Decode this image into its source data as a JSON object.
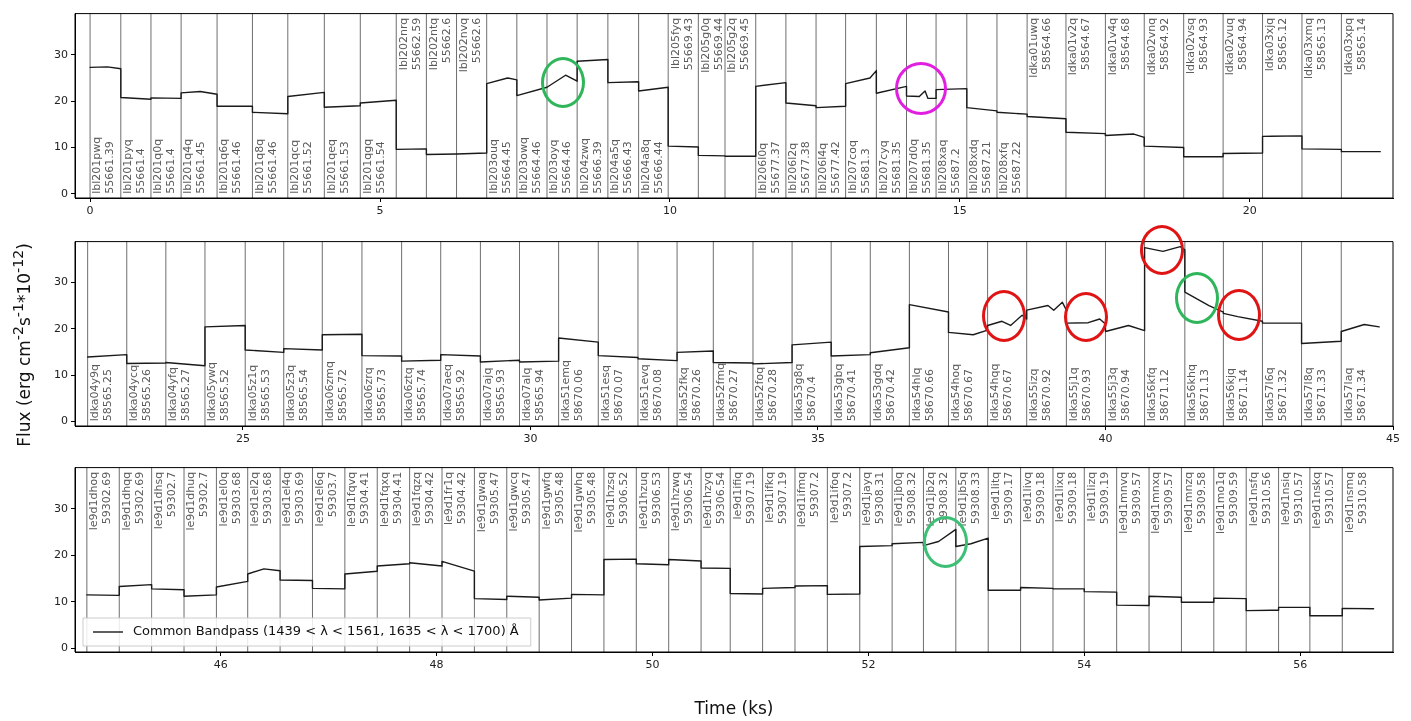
{
  "chart_data": [
    {
      "type": "line",
      "xlim": [
        -0.26,
        22.47
      ],
      "xticks": [
        0,
        5,
        10,
        15,
        20
      ],
      "ylim": [
        -0.9,
        38.9
      ],
      "yticks": [
        0,
        10,
        20,
        30
      ],
      "x": [
        0,
        0.3,
        0.53,
        0.53,
        1.05,
        1.05,
        1.57,
        1.57,
        1.9,
        2.19,
        2.19,
        2.8,
        2.8,
        3.41,
        3.41,
        4.04,
        4.04,
        4.66,
        4.66,
        5.28,
        5.28,
        5.8,
        5.8,
        6.32,
        6.32,
        6.84,
        6.84,
        7.2,
        7.36,
        7.36,
        7.88,
        7.88,
        8.2,
        8.4,
        8.4,
        8.93,
        8.93,
        9.46,
        9.46,
        9.97,
        9.97,
        10.49,
        10.49,
        10.95,
        10.95,
        11.48,
        11.48,
        12,
        12,
        12.52,
        12.52,
        13.03,
        13.03,
        13.45,
        13.56,
        13.56,
        14.08,
        14.08,
        14.3,
        14.4,
        14.45,
        14.59,
        14.59,
        15.12,
        15.12,
        15.64,
        15.64,
        16.16,
        16.16,
        16.83,
        16.83,
        17.51,
        17.51,
        18,
        18.18,
        18.18,
        18.86,
        18.86,
        19.54,
        19.54,
        20.22,
        20.22,
        20.9,
        20.9,
        21.58,
        21.58,
        22.25
      ],
      "series": [
        {
          "color": "#1a1a1a",
          "values": [
            27.3,
            27.4,
            27.0,
            20.8,
            20.4,
            20.7,
            20.6,
            21.8,
            22.1,
            21.5,
            18.9,
            18.9,
            17.6,
            17.3,
            21.0,
            21.9,
            18.7,
            19.0,
            19.6,
            20.2,
            9.6,
            9.7,
            8.5,
            8.6,
            8.6,
            8.8,
            23.8,
            25.0,
            24.6,
            21.2,
            23.0,
            23.0,
            25.6,
            24.3,
            28.6,
            29.0,
            24.0,
            24.2,
            22.2,
            23.0,
            10.3,
            10.1,
            8.3,
            8.2,
            8.1,
            8.1,
            23.2,
            24.0,
            19.6,
            19.0,
            18.6,
            18.9,
            23.8,
            25.0,
            26.6,
            21.7,
            23.2,
            21.1,
            21.0,
            22.2,
            20.6,
            20.6,
            22.5,
            22.7,
            18.6,
            17.9,
            17.6,
            17.2,
            16.7,
            16.2,
            13.3,
            13.0,
            12.6,
            12.9,
            12.2,
            10.3,
            10.0,
            8.0,
            8.0,
            8.7,
            8.8,
            12.4,
            12.5,
            9.7,
            9.6,
            9.1,
            9.1
          ]
        }
      ],
      "ref_lines": [
        {
          "axis": "x",
          "value": 0
        },
        {
          "axis": "x",
          "value": 0.53
        },
        {
          "axis": "x",
          "value": 1.05
        },
        {
          "axis": "x",
          "value": 1.57
        },
        {
          "axis": "x",
          "value": 2.19
        },
        {
          "axis": "x",
          "value": 2.8
        },
        {
          "axis": "x",
          "value": 3.41
        },
        {
          "axis": "x",
          "value": 4.04
        },
        {
          "axis": "x",
          "value": 4.66
        },
        {
          "axis": "x",
          "value": 5.28
        },
        {
          "axis": "x",
          "value": 5.8
        },
        {
          "axis": "x",
          "value": 6.32
        },
        {
          "axis": "x",
          "value": 6.84
        },
        {
          "axis": "x",
          "value": 7.36
        },
        {
          "axis": "x",
          "value": 7.88
        },
        {
          "axis": "x",
          "value": 8.4
        },
        {
          "axis": "x",
          "value": 8.93
        },
        {
          "axis": "x",
          "value": 9.46
        },
        {
          "axis": "x",
          "value": 9.97
        },
        {
          "axis": "x",
          "value": 10.49
        },
        {
          "axis": "x",
          "value": 10.95
        },
        {
          "axis": "x",
          "value": 11.48
        },
        {
          "axis": "x",
          "value": 12
        },
        {
          "axis": "x",
          "value": 12.52
        },
        {
          "axis": "x",
          "value": 13.03
        },
        {
          "axis": "x",
          "value": 13.56
        },
        {
          "axis": "x",
          "value": 14.08
        },
        {
          "axis": "x",
          "value": 14.59
        },
        {
          "axis": "x",
          "value": 15.12
        },
        {
          "axis": "x",
          "value": 15.64
        },
        {
          "axis": "x",
          "value": 16.16
        },
        {
          "axis": "x",
          "value": 16.83
        },
        {
          "axis": "x",
          "value": 17.51
        },
        {
          "axis": "x",
          "value": 18.18
        },
        {
          "axis": "x",
          "value": 18.86
        },
        {
          "axis": "x",
          "value": 19.54
        },
        {
          "axis": "x",
          "value": 20.22
        },
        {
          "axis": "x",
          "value": 20.9
        },
        {
          "axis": "x",
          "value": 21.58
        }
      ],
      "annotations": [
        {
          "text": "lbl201pwq\n55661.39",
          "x": 0,
          "y": 0
        },
        {
          "text": "lbl201pyq\n55661.4",
          "x": 0.53,
          "y": 0
        },
        {
          "text": "lbl201q0q\n55661.4",
          "x": 1.05,
          "y": 0
        },
        {
          "text": "lbl201q4q\n55661.45",
          "x": 1.57,
          "y": 0
        },
        {
          "text": "lbl201q6q\n55661.46",
          "x": 2.19,
          "y": 0
        },
        {
          "text": "lbl201q8q\n55661.46",
          "x": 2.8,
          "y": 0
        },
        {
          "text": "lbl201qcq\n55661.52",
          "x": 3.41,
          "y": 0
        },
        {
          "text": "lbl201qeq\n55661.53",
          "x": 4.04,
          "y": 0
        },
        {
          "text": "lbl201qgq\n55661.54",
          "x": 4.66,
          "y": 0
        },
        {
          "text": "lbl202nrq\n55662.59",
          "x": 5.28,
          "y": 38
        },
        {
          "text": "lbl202ntq\n55662.6",
          "x": 5.8,
          "y": 38
        },
        {
          "text": "lbl202nvq\n55662.6",
          "x": 6.32,
          "y": 38
        },
        {
          "text": "lbl203ouq\n55664.45",
          "x": 6.84,
          "y": 0
        },
        {
          "text": "lbl203owq\n55664.46",
          "x": 7.36,
          "y": 0
        },
        {
          "text": "lbl203oyq\n55664.46",
          "x": 7.88,
          "y": 0
        },
        {
          "text": "lbl204zwq\n55666.39",
          "x": 8.4,
          "y": 0
        },
        {
          "text": "lbl204a5q\n55666.43",
          "x": 8.93,
          "y": 0
        },
        {
          "text": "lbl204a8q\n55666.44",
          "x": 9.46,
          "y": 0
        },
        {
          "text": "lbl205fyq\n55669.43",
          "x": 9.97,
          "y": 38
        },
        {
          "text": "lbl205g0q\n55669.44",
          "x": 10.49,
          "y": 38
        },
        {
          "text": "lbl205g2q\n55669.45",
          "x": 10.95,
          "y": 38
        },
        {
          "text": "lbl206l0q\n55677.37",
          "x": 11.48,
          "y": 0
        },
        {
          "text": "lbl206l2q\n55677.38",
          "x": 12,
          "y": 0
        },
        {
          "text": "lbl206l4q\n55677.42",
          "x": 12.52,
          "y": 0
        },
        {
          "text": "lbl207coq\n55681.3",
          "x": 13.03,
          "y": 0
        },
        {
          "text": "lbl207cyq\n55681.35",
          "x": 13.56,
          "y": 0
        },
        {
          "text": "lbl207d0q\n55681.35",
          "x": 14.08,
          "y": 0
        },
        {
          "text": "lbl208xaq\n55687.2",
          "x": 14.59,
          "y": 0
        },
        {
          "text": "lbl208xdq\n55687.21",
          "x": 15.12,
          "y": 0
        },
        {
          "text": "lbl208xfq\n55687.22",
          "x": 15.64,
          "y": 0
        },
        {
          "text": "ldka01uwq\n58564.66",
          "x": 16.16,
          "y": 38
        },
        {
          "text": "ldka01v2q\n58564.67",
          "x": 16.83,
          "y": 38
        },
        {
          "text": "ldka01v4q\n58564.68",
          "x": 17.51,
          "y": 38
        },
        {
          "text": "ldka02vnq\n58564.92",
          "x": 18.18,
          "y": 38
        },
        {
          "text": "ldka02vsq\n58564.93",
          "x": 18.86,
          "y": 38
        },
        {
          "text": "ldka02vuq\n58564.94",
          "x": 19.54,
          "y": 38
        },
        {
          "text": "ldka03xjq\n58565.12",
          "x": 20.22,
          "y": 38
        },
        {
          "text": "ldka03xmq\n58565.13",
          "x": 20.9,
          "y": 38
        },
        {
          "text": "ldka03xpq\n58565.14",
          "x": 21.58,
          "y": 38
        }
      ]
    },
    {
      "type": "line",
      "xlim": [
        22.08,
        45
      ],
      "xticks": [
        25,
        30,
        35,
        40,
        45
      ],
      "ylim": [
        -1,
        38.8
      ],
      "yticks": [
        0,
        10,
        20,
        30
      ],
      "ylabel": "Flux  (erg cm$^{-2}$s$^{-1}$*10$^{-12}$)",
      "x": [
        22.3,
        22.98,
        22.98,
        23.66,
        23.66,
        24.34,
        24.34,
        25.04,
        25.04,
        25.71,
        25.71,
        26.38,
        26.38,
        27.07,
        27.07,
        27.76,
        27.76,
        28.44,
        28.44,
        29.13,
        29.13,
        29.81,
        29.81,
        30.49,
        30.49,
        31.18,
        31.18,
        31.87,
        31.87,
        32.55,
        32.55,
        33.18,
        33.18,
        33.87,
        33.87,
        34.55,
        34.55,
        35.23,
        35.23,
        35.91,
        35.91,
        36.59,
        36.59,
        37.27,
        37.27,
        37.7,
        37.95,
        37.95,
        38.2,
        38.35,
        38.55,
        38.63,
        38.63,
        39.0,
        39.1,
        39.25,
        39.32,
        39.32,
        39.7,
        39.9,
        40.0,
        40.0,
        40.4,
        40.68,
        40.68,
        41.0,
        41.3,
        41.38,
        41.38,
        41.8,
        42.05,
        42.05,
        42.3,
        42.73,
        42.73,
        43.41,
        43.41,
        44.1,
        44.1,
        44.5,
        44.76
      ],
      "series": [
        {
          "color": "#1a1a1a",
          "values": [
            13.9,
            14.4,
            12.5,
            12.6,
            12.7,
            12.0,
            20.4,
            20.7,
            15.4,
            14.9,
            15.7,
            15.4,
            18.7,
            18.8,
            14.2,
            14.1,
            13.0,
            13.2,
            14.4,
            14.1,
            12.8,
            13.2,
            12.8,
            13.0,
            18.0,
            17.1,
            14.2,
            13.8,
            13.5,
            13.1,
            14.9,
            15.2,
            12.7,
            12.6,
            12.4,
            12.7,
            16.5,
            17.1,
            14.1,
            14.4,
            14.8,
            15.9,
            25.2,
            23.6,
            19.2,
            18.7,
            19.7,
            20.7,
            21.6,
            20.7,
            22.9,
            22.1,
            24.0,
            25.0,
            24.0,
            25.7,
            24.0,
            21.2,
            21.3,
            22.1,
            21.0,
            19.4,
            20.7,
            19.6,
            37.5,
            36.7,
            37.7,
            37.0,
            27.9,
            25.0,
            23.6,
            23.3,
            22.6,
            21.6,
            21.2,
            21.2,
            16.8,
            17.3,
            19.4,
            20.9,
            20.4
          ]
        }
      ],
      "ref_lines": [
        {
          "axis": "x",
          "value": 22.3
        },
        {
          "axis": "x",
          "value": 22.98
        },
        {
          "axis": "x",
          "value": 23.66
        },
        {
          "axis": "x",
          "value": 24.34
        },
        {
          "axis": "x",
          "value": 25.04
        },
        {
          "axis": "x",
          "value": 25.71
        },
        {
          "axis": "x",
          "value": 26.38
        },
        {
          "axis": "x",
          "value": 27.07
        },
        {
          "axis": "x",
          "value": 27.76
        },
        {
          "axis": "x",
          "value": 28.44
        },
        {
          "axis": "x",
          "value": 29.13
        },
        {
          "axis": "x",
          "value": 29.81
        },
        {
          "axis": "x",
          "value": 30.49
        },
        {
          "axis": "x",
          "value": 31.18
        },
        {
          "axis": "x",
          "value": 31.87
        },
        {
          "axis": "x",
          "value": 32.55
        },
        {
          "axis": "x",
          "value": 33.18
        },
        {
          "axis": "x",
          "value": 33.87
        },
        {
          "axis": "x",
          "value": 34.55
        },
        {
          "axis": "x",
          "value": 35.23
        },
        {
          "axis": "x",
          "value": 35.91
        },
        {
          "axis": "x",
          "value": 36.59
        },
        {
          "axis": "x",
          "value": 37.27
        },
        {
          "axis": "x",
          "value": 37.95
        },
        {
          "axis": "x",
          "value": 38.63
        },
        {
          "axis": "x",
          "value": 39.32
        },
        {
          "axis": "x",
          "value": 40.0
        },
        {
          "axis": "x",
          "value": 40.68
        },
        {
          "axis": "x",
          "value": 41.38
        },
        {
          "axis": "x",
          "value": 42.05
        },
        {
          "axis": "x",
          "value": 42.73
        },
        {
          "axis": "x",
          "value": 43.41
        },
        {
          "axis": "x",
          "value": 44.1
        }
      ],
      "annotations": [
        {
          "text": "ldka04y9q\n58565.25",
          "x": 22.3,
          "y": 0
        },
        {
          "text": "ldka04ycq\n58565.26",
          "x": 22.98,
          "y": 0
        },
        {
          "text": "ldka04yfq\n58565.27",
          "x": 23.66,
          "y": 0
        },
        {
          "text": "ldka05ywq\n58565.52",
          "x": 24.34,
          "y": 0
        },
        {
          "text": "ldka05z1q\n58565.53",
          "x": 25.04,
          "y": 0
        },
        {
          "text": "ldka05z3q\n58565.54",
          "x": 25.71,
          "y": 0
        },
        {
          "text": "ldka06zmq\n58565.72",
          "x": 26.38,
          "y": 0
        },
        {
          "text": "ldka06zrq\n58565.73",
          "x": 27.07,
          "y": 0
        },
        {
          "text": "ldka06ztq\n58565.74",
          "x": 27.76,
          "y": 0
        },
        {
          "text": "ldka07aeq\n58565.92",
          "x": 28.44,
          "y": 0
        },
        {
          "text": "ldka07ajq\n58565.93",
          "x": 29.13,
          "y": 0
        },
        {
          "text": "ldka07alq\n58565.94",
          "x": 29.81,
          "y": 0
        },
        {
          "text": "ldka51emq\n58670.06",
          "x": 30.49,
          "y": 0
        },
        {
          "text": "ldka51esq\n58670.07",
          "x": 31.18,
          "y": 0
        },
        {
          "text": "ldka51evq\n58670.08",
          "x": 31.87,
          "y": 0
        },
        {
          "text": "ldka52fkq\n58670.26",
          "x": 32.55,
          "y": 0
        },
        {
          "text": "ldka52fmq\n58670.27",
          "x": 33.18,
          "y": 0
        },
        {
          "text": "ldka52foq\n58670.28",
          "x": 33.87,
          "y": 0
        },
        {
          "text": "ldka53g8q\n58670.4",
          "x": 34.55,
          "y": 0
        },
        {
          "text": "ldka53gbq\n58670.41",
          "x": 35.23,
          "y": 0
        },
        {
          "text": "ldka53gdq\n58670.42",
          "x": 35.91,
          "y": 0
        },
        {
          "text": "ldka54hlq\n58670.66",
          "x": 36.59,
          "y": 0
        },
        {
          "text": "ldka54hoq\n58670.67",
          "x": 37.27,
          "y": 0
        },
        {
          "text": "ldka54hqq\n58670.67",
          "x": 37.95,
          "y": 0
        },
        {
          "text": "ldka55izq\n58670.92",
          "x": 38.63,
          "y": 0
        },
        {
          "text": "ldka55j1q\n58670.93",
          "x": 39.32,
          "y": 0
        },
        {
          "text": "ldka55j3q\n58670.94",
          "x": 40.0,
          "y": 0
        },
        {
          "text": "ldka56kfq\n58671.12",
          "x": 40.68,
          "y": 0
        },
        {
          "text": "ldka56khq\n58671.13",
          "x": 41.38,
          "y": 0
        },
        {
          "text": "ldka56kjq\n58671.14",
          "x": 42.05,
          "y": 0
        },
        {
          "text": "ldka57l6q\n58671.32",
          "x": 42.73,
          "y": 0
        },
        {
          "text": "ldka57l8q\n58671.33",
          "x": 43.41,
          "y": 0
        },
        {
          "text": "ldka57laq\n58671.34",
          "x": 44.1,
          "y": 0
        }
      ]
    },
    {
      "type": "line",
      "xlim": [
        44.65,
        56.86
      ],
      "xticks": [
        46,
        48,
        50,
        52,
        54,
        56
      ],
      "ylim": [
        -0.8,
        38.9
      ],
      "yticks": [
        0,
        10,
        20,
        30
      ],
      "xlabel": "Time (ks)",
      "legend": "bottom left",
      "x": [
        44.76,
        45.06,
        45.06,
        45.36,
        45.36,
        45.66,
        45.66,
        45.96,
        45.96,
        46.25,
        46.25,
        46.4,
        46.55,
        46.55,
        46.85,
        46.85,
        47.15,
        47.15,
        47.45,
        47.45,
        47.75,
        47.75,
        48.05,
        48.05,
        48.35,
        48.35,
        48.65,
        48.65,
        48.95,
        48.95,
        49.25,
        49.25,
        49.55,
        49.55,
        49.85,
        49.85,
        50.15,
        50.15,
        50.45,
        50.45,
        50.72,
        50.72,
        51.02,
        51.02,
        51.32,
        51.32,
        51.62,
        51.62,
        51.92,
        51.92,
        52.22,
        52.22,
        52.51,
        52.51,
        52.65,
        52.81,
        52.81,
        52.95,
        53.11,
        53.11,
        53.41,
        53.41,
        53.71,
        53.71,
        54.0,
        54.0,
        54.3,
        54.3,
        54.6,
        54.6,
        54.9,
        54.9,
        55.2,
        55.2,
        55.5,
        55.5,
        55.8,
        55.8,
        56.09,
        56.09,
        56.39,
        56.39,
        56.68
      ],
      "series": [
        {
          "name": "Common Bandpass (1439 < λ < 1561, 1635 < λ < 1700) Å",
          "color": "#1a1a1a",
          "values": [
            11.5,
            11.4,
            13.3,
            13.7,
            12.8,
            12.6,
            11.2,
            11.5,
            13.2,
            14.4,
            16.0,
            17.1,
            16.7,
            14.7,
            14.6,
            12.9,
            12.8,
            16.0,
            16.6,
            17.7,
            18.2,
            18.4,
            17.7,
            18.7,
            16.6,
            10.7,
            10.5,
            11.2,
            11.0,
            10.4,
            10.8,
            11.6,
            11.5,
            19.1,
            19.2,
            18.2,
            18.0,
            19.1,
            18.8,
            17.3,
            17.2,
            11.8,
            11.7,
            12.9,
            13.1,
            13.4,
            13.5,
            11.6,
            11.7,
            21.9,
            22.1,
            22.5,
            22.8,
            22.1,
            23.0,
            25.6,
            21.9,
            22.5,
            23.7,
            12.5,
            12.5,
            13.1,
            12.9,
            12.8,
            12.8,
            12.2,
            12.1,
            9.3,
            9.2,
            11.2,
            11.0,
            9.9,
            9.9,
            10.8,
            10.7,
            8.1,
            8.2,
            8.8,
            8.8,
            7.0,
            7.0,
            8.6,
            8.5
          ]
        }
      ],
      "ref_lines": [
        {
          "axis": "x",
          "value": 44.76
        },
        {
          "axis": "x",
          "value": 45.06
        },
        {
          "axis": "x",
          "value": 45.36
        },
        {
          "axis": "x",
          "value": 45.66
        },
        {
          "axis": "x",
          "value": 45.96
        },
        {
          "axis": "x",
          "value": 46.25
        },
        {
          "axis": "x",
          "value": 46.55
        },
        {
          "axis": "x",
          "value": 46.85
        },
        {
          "axis": "x",
          "value": 47.15
        },
        {
          "axis": "x",
          "value": 47.45
        },
        {
          "axis": "x",
          "value": 47.75
        },
        {
          "axis": "x",
          "value": 48.05
        },
        {
          "axis": "x",
          "value": 48.35
        },
        {
          "axis": "x",
          "value": 48.65
        },
        {
          "axis": "x",
          "value": 48.95
        },
        {
          "axis": "x",
          "value": 49.25
        },
        {
          "axis": "x",
          "value": 49.55
        },
        {
          "axis": "x",
          "value": 49.85
        },
        {
          "axis": "x",
          "value": 50.15
        },
        {
          "axis": "x",
          "value": 50.45
        },
        {
          "axis": "x",
          "value": 50.72
        },
        {
          "axis": "x",
          "value": 51.02
        },
        {
          "axis": "x",
          "value": 51.32
        },
        {
          "axis": "x",
          "value": 51.62
        },
        {
          "axis": "x",
          "value": 51.92
        },
        {
          "axis": "x",
          "value": 52.22
        },
        {
          "axis": "x",
          "value": 52.51
        },
        {
          "axis": "x",
          "value": 52.81
        },
        {
          "axis": "x",
          "value": 53.11
        },
        {
          "axis": "x",
          "value": 53.41
        },
        {
          "axis": "x",
          "value": 53.71
        },
        {
          "axis": "x",
          "value": 54.0
        },
        {
          "axis": "x",
          "value": 54.3
        },
        {
          "axis": "x",
          "value": 54.6
        },
        {
          "axis": "x",
          "value": 54.9
        },
        {
          "axis": "x",
          "value": 55.2
        },
        {
          "axis": "x",
          "value": 55.5
        },
        {
          "axis": "x",
          "value": 55.8
        },
        {
          "axis": "x",
          "value": 56.09
        },
        {
          "axis": "x",
          "value": 56.39
        }
      ],
      "annotations": [
        {
          "text": "le9d1dhoq\n59302.69",
          "x": 44.76,
          "y": 38
        },
        {
          "text": "le9d1dhqq\n59302.69",
          "x": 45.06,
          "y": 38
        },
        {
          "text": "le9d1dhsq\n59302.7",
          "x": 45.36,
          "y": 38
        },
        {
          "text": "le9d1dhuq\n59302.7",
          "x": 45.66,
          "y": 38
        },
        {
          "text": "le9d1el0q\n59303.68",
          "x": 45.96,
          "y": 38
        },
        {
          "text": "le9d1el2q\n59303.68",
          "x": 46.25,
          "y": 38
        },
        {
          "text": "le9d1el4q\n59303.69",
          "x": 46.55,
          "y": 38
        },
        {
          "text": "le9d1el6q\n59303.7",
          "x": 46.85,
          "y": 38
        },
        {
          "text": "le9d1fqvq\n59304.41",
          "x": 47.15,
          "y": 38
        },
        {
          "text": "le9d1fqxq\n59304.41",
          "x": 47.45,
          "y": 38
        },
        {
          "text": "le9d1fqzq\n59304.42",
          "x": 47.75,
          "y": 38
        },
        {
          "text": "le9d1fr1q\n59304.42",
          "x": 48.05,
          "y": 38
        },
        {
          "text": "le9d1gwaq\n59305.47",
          "x": 48.35,
          "y": 38
        },
        {
          "text": "le9d1gwcq\n59305.47",
          "x": 48.65,
          "y": 38
        },
        {
          "text": "le9d1gwfq\n59305.48",
          "x": 48.95,
          "y": 38
        },
        {
          "text": "le9d1gwhq\n59305.48",
          "x": 49.25,
          "y": 38
        },
        {
          "text": "le9d1hzsq\n59306.52",
          "x": 49.55,
          "y": 38
        },
        {
          "text": "le9d1hzuq\n59306.53",
          "x": 49.85,
          "y": 38
        },
        {
          "text": "le9d1hzwq\n59306.54",
          "x": 50.15,
          "y": 38
        },
        {
          "text": "le9d1hzyq\n59306.54",
          "x": 50.45,
          "y": 38
        },
        {
          "text": "le9d1ifiq\n59307.19",
          "x": 50.72,
          "y": 38
        },
        {
          "text": "le9d1ifkq\n59307.19",
          "x": 51.02,
          "y": 38
        },
        {
          "text": "le9d1ifmq\n59307.2",
          "x": 51.32,
          "y": 38
        },
        {
          "text": "le9d1ifoq\n59307.2",
          "x": 51.62,
          "y": 38
        },
        {
          "text": "le9d1jayq\n59308.31",
          "x": 51.92,
          "y": 38
        },
        {
          "text": "le9d1jb0q\n59308.32",
          "x": 52.22,
          "y": 38
        },
        {
          "text": "le9d1jb2q\n59308.32",
          "x": 52.51,
          "y": 38
        },
        {
          "text": "le9d1jb5q\n59308.33",
          "x": 52.81,
          "y": 38
        },
        {
          "text": "le9d1litq\n59309.17",
          "x": 53.11,
          "y": 38
        },
        {
          "text": "le9d1livq\n59309.18",
          "x": 53.41,
          "y": 38
        },
        {
          "text": "le9d1lixq\n59309.18",
          "x": 53.71,
          "y": 38
        },
        {
          "text": "le9d1lizq\n59309.19",
          "x": 54.0,
          "y": 38
        },
        {
          "text": "le9d1mnvq\n59309.57",
          "x": 54.3,
          "y": 38
        },
        {
          "text": "le9d1mnxq\n59309.57",
          "x": 54.6,
          "y": 38
        },
        {
          "text": "le9d1mnzq\n59309.58",
          "x": 54.9,
          "y": 38
        },
        {
          "text": "le9d1mo1q\n59309.59",
          "x": 55.2,
          "y": 38
        },
        {
          "text": "le9d1nsfq\n59310.56",
          "x": 55.5,
          "y": 38
        },
        {
          "text": "le9d1nsiq\n59310.57",
          "x": 55.8,
          "y": 38
        },
        {
          "text": "le9d1nskq\n59310.57",
          "x": 56.09,
          "y": 38
        },
        {
          "text": "le9d1nsmq\n59310.58",
          "x": 56.39,
          "y": 38
        }
      ]
    }
  ]
}
